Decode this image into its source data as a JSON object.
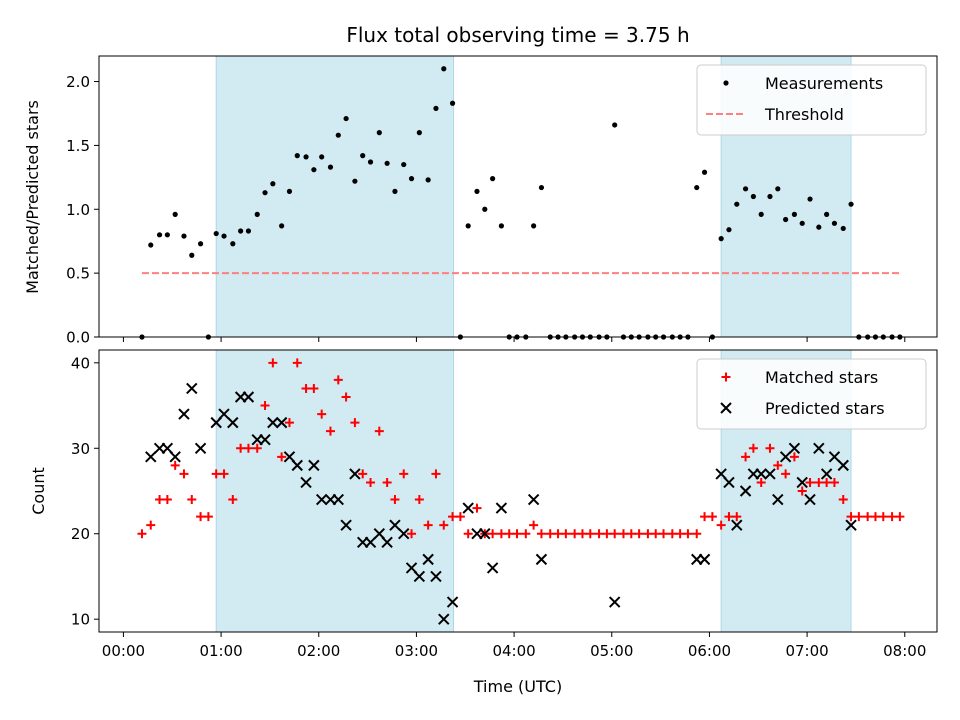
{
  "chart_data": [
    {
      "type": "scatter",
      "title": "Flux total observing time = 3.75 h",
      "xlabel": "",
      "ylabel": "Matched/Predicted stars",
      "xlim": [
        -0.25,
        8.33
      ],
      "ylim": [
        0,
        2.2
      ],
      "yticks": [
        "0.0",
        "0.5",
        "1.0",
        "1.5",
        "2.0"
      ],
      "shaded_intervals": [
        [
          0.95,
          3.38
        ],
        [
          6.12,
          7.45
        ]
      ],
      "legend_position": "top-right",
      "series": [
        {
          "name": "Measurements",
          "marker": "dot",
          "color": "#000000",
          "points": [
            [
              0.19,
              0.0
            ],
            [
              0.28,
              0.72
            ],
            [
              0.37,
              0.8
            ],
            [
              0.45,
              0.8
            ],
            [
              0.53,
              0.96
            ],
            [
              0.62,
              0.79
            ],
            [
              0.7,
              0.64
            ],
            [
              0.79,
              0.73
            ],
            [
              0.87,
              0.0
            ],
            [
              0.95,
              0.81
            ],
            [
              1.03,
              0.79
            ],
            [
              1.12,
              0.73
            ],
            [
              1.2,
              0.83
            ],
            [
              1.28,
              0.83
            ],
            [
              1.37,
              0.96
            ],
            [
              1.45,
              1.13
            ],
            [
              1.53,
              1.2
            ],
            [
              1.62,
              0.87
            ],
            [
              1.7,
              1.14
            ],
            [
              1.78,
              1.42
            ],
            [
              1.87,
              1.41
            ],
            [
              1.95,
              1.31
            ],
            [
              2.03,
              1.41
            ],
            [
              2.12,
              1.33
            ],
            [
              2.2,
              1.58
            ],
            [
              2.28,
              1.71
            ],
            [
              2.37,
              1.22
            ],
            [
              2.45,
              1.42
            ],
            [
              2.53,
              1.37
            ],
            [
              2.62,
              1.6
            ],
            [
              2.7,
              1.36
            ],
            [
              2.78,
              1.14
            ],
            [
              2.87,
              1.35
            ],
            [
              2.95,
              1.24
            ],
            [
              3.03,
              1.6
            ],
            [
              3.12,
              1.23
            ],
            [
              3.2,
              1.79
            ],
            [
              3.28,
              2.1
            ],
            [
              3.37,
              1.83
            ],
            [
              3.45,
              0.0
            ],
            [
              3.53,
              0.87
            ],
            [
              3.62,
              1.14
            ],
            [
              3.7,
              1.0
            ],
            [
              3.78,
              1.24
            ],
            [
              3.87,
              0.87
            ],
            [
              3.95,
              0.0
            ],
            [
              4.03,
              0.0
            ],
            [
              4.12,
              0.0
            ],
            [
              4.2,
              0.87
            ],
            [
              4.28,
              1.17
            ],
            [
              4.37,
              0.0
            ],
            [
              4.45,
              0.0
            ],
            [
              4.53,
              0.0
            ],
            [
              4.62,
              0.0
            ],
            [
              4.7,
              0.0
            ],
            [
              4.78,
              0.0
            ],
            [
              4.87,
              0.0
            ],
            [
              4.95,
              0.0
            ],
            [
              5.03,
              1.66
            ],
            [
              5.12,
              0.0
            ],
            [
              5.2,
              0.0
            ],
            [
              5.28,
              0.0
            ],
            [
              5.37,
              0.0
            ],
            [
              5.45,
              0.0
            ],
            [
              5.53,
              0.0
            ],
            [
              5.62,
              0.0
            ],
            [
              5.7,
              0.0
            ],
            [
              5.78,
              0.0
            ],
            [
              5.87,
              1.17
            ],
            [
              5.95,
              1.29
            ],
            [
              6.03,
              0.0
            ],
            [
              6.12,
              0.77
            ],
            [
              6.2,
              0.84
            ],
            [
              6.28,
              1.04
            ],
            [
              6.37,
              1.16
            ],
            [
              6.45,
              1.1
            ],
            [
              6.53,
              0.96
            ],
            [
              6.62,
              1.1
            ],
            [
              6.7,
              1.16
            ],
            [
              6.78,
              0.92
            ],
            [
              6.87,
              0.96
            ],
            [
              6.95,
              0.89
            ],
            [
              7.03,
              1.08
            ],
            [
              7.12,
              0.86
            ],
            [
              7.2,
              0.96
            ],
            [
              7.28,
              0.89
            ],
            [
              7.37,
              0.85
            ],
            [
              7.45,
              1.04
            ],
            [
              7.53,
              0.0
            ],
            [
              7.62,
              0.0
            ],
            [
              7.7,
              0.0
            ],
            [
              7.78,
              0.0
            ],
            [
              7.87,
              0.0
            ],
            [
              7.95,
              0.0
            ]
          ]
        },
        {
          "name": "Threshold",
          "marker": "dashed-line",
          "color": "#ff7f7f",
          "points": [
            [
              0.19,
              0.5
            ],
            [
              7.95,
              0.5
            ]
          ]
        }
      ]
    },
    {
      "type": "scatter",
      "title": "",
      "xlabel": "Time (UTC)",
      "ylabel": "Count",
      "xlim": [
        -0.25,
        8.33
      ],
      "ylim": [
        8.5,
        41.5
      ],
      "yticks": [
        "10",
        "20",
        "30",
        "40"
      ],
      "xticks": [
        "00:00",
        "01:00",
        "02:00",
        "03:00",
        "04:00",
        "05:00",
        "06:00",
        "07:00",
        "08:00"
      ],
      "shaded_intervals": [
        [
          0.95,
          3.38
        ],
        [
          6.12,
          7.45
        ]
      ],
      "legend_position": "top-right",
      "series": [
        {
          "name": "Matched stars",
          "marker": "plus",
          "color": "#ff0000",
          "points": [
            [
              0.19,
              20
            ],
            [
              0.28,
              21
            ],
            [
              0.37,
              24
            ],
            [
              0.45,
              24
            ],
            [
              0.53,
              28
            ],
            [
              0.62,
              27
            ],
            [
              0.7,
              24
            ],
            [
              0.79,
              22
            ],
            [
              0.87,
              22
            ],
            [
              0.95,
              27
            ],
            [
              1.03,
              27
            ],
            [
              1.12,
              24
            ],
            [
              1.2,
              30
            ],
            [
              1.28,
              30
            ],
            [
              1.37,
              30
            ],
            [
              1.45,
              35
            ],
            [
              1.53,
              40
            ],
            [
              1.62,
              29
            ],
            [
              1.7,
              33
            ],
            [
              1.78,
              40
            ],
            [
              1.87,
              37
            ],
            [
              1.95,
              37
            ],
            [
              2.03,
              34
            ],
            [
              2.12,
              32
            ],
            [
              2.2,
              38
            ],
            [
              2.28,
              36
            ],
            [
              2.37,
              33
            ],
            [
              2.45,
              27
            ],
            [
              2.53,
              26
            ],
            [
              2.62,
              32
            ],
            [
              2.7,
              26
            ],
            [
              2.78,
              24
            ],
            [
              2.87,
              27
            ],
            [
              2.95,
              20
            ],
            [
              3.03,
              24
            ],
            [
              3.12,
              21
            ],
            [
              3.2,
              27
            ],
            [
              3.28,
              21
            ],
            [
              3.37,
              22
            ],
            [
              3.45,
              22
            ],
            [
              3.53,
              20
            ],
            [
              3.62,
              23
            ],
            [
              3.7,
              20
            ],
            [
              3.78,
              20
            ],
            [
              3.87,
              20
            ],
            [
              3.95,
              20
            ],
            [
              4.03,
              20
            ],
            [
              4.12,
              20
            ],
            [
              4.2,
              21
            ],
            [
              4.28,
              20
            ],
            [
              4.37,
              20
            ],
            [
              4.45,
              20
            ],
            [
              4.53,
              20
            ],
            [
              4.62,
              20
            ],
            [
              4.7,
              20
            ],
            [
              4.78,
              20
            ],
            [
              4.87,
              20
            ],
            [
              4.95,
              20
            ],
            [
              5.03,
              20
            ],
            [
              5.12,
              20
            ],
            [
              5.2,
              20
            ],
            [
              5.28,
              20
            ],
            [
              5.37,
              20
            ],
            [
              5.45,
              20
            ],
            [
              5.53,
              20
            ],
            [
              5.62,
              20
            ],
            [
              5.7,
              20
            ],
            [
              5.78,
              20
            ],
            [
              5.87,
              20
            ],
            [
              5.95,
              22
            ],
            [
              6.03,
              22
            ],
            [
              6.12,
              21
            ],
            [
              6.2,
              22
            ],
            [
              6.28,
              22
            ],
            [
              6.37,
              29
            ],
            [
              6.45,
              30
            ],
            [
              6.53,
              26
            ],
            [
              6.62,
              30
            ],
            [
              6.7,
              28
            ],
            [
              6.78,
              27
            ],
            [
              6.87,
              29
            ],
            [
              6.95,
              25
            ],
            [
              7.03,
              26
            ],
            [
              7.12,
              26
            ],
            [
              7.2,
              26
            ],
            [
              7.28,
              26
            ],
            [
              7.37,
              24
            ],
            [
              7.45,
              22
            ],
            [
              7.53,
              22
            ],
            [
              7.62,
              22
            ],
            [
              7.7,
              22
            ],
            [
              7.78,
              22
            ],
            [
              7.87,
              22
            ],
            [
              7.95,
              22
            ]
          ]
        },
        {
          "name": "Predicted stars",
          "marker": "x",
          "color": "#000000",
          "points": [
            [
              0.28,
              29
            ],
            [
              0.37,
              30
            ],
            [
              0.45,
              30
            ],
            [
              0.53,
              29
            ],
            [
              0.62,
              34
            ],
            [
              0.7,
              37
            ],
            [
              0.79,
              30
            ],
            [
              0.95,
              33
            ],
            [
              1.03,
              34
            ],
            [
              1.12,
              33
            ],
            [
              1.2,
              36
            ],
            [
              1.28,
              36
            ],
            [
              1.37,
              31
            ],
            [
              1.45,
              31
            ],
            [
              1.53,
              33
            ],
            [
              1.62,
              33
            ],
            [
              1.7,
              29
            ],
            [
              1.78,
              28
            ],
            [
              1.87,
              26
            ],
            [
              1.95,
              28
            ],
            [
              2.03,
              24
            ],
            [
              2.12,
              24
            ],
            [
              2.2,
              24
            ],
            [
              2.28,
              21
            ],
            [
              2.37,
              27
            ],
            [
              2.45,
              19
            ],
            [
              2.53,
              19
            ],
            [
              2.62,
              20
            ],
            [
              2.7,
              19
            ],
            [
              2.78,
              21
            ],
            [
              2.87,
              20
            ],
            [
              2.95,
              16
            ],
            [
              3.03,
              15
            ],
            [
              3.12,
              17
            ],
            [
              3.2,
              15
            ],
            [
              3.28,
              10
            ],
            [
              3.37,
              12
            ],
            [
              3.53,
              23
            ],
            [
              3.62,
              20
            ],
            [
              3.7,
              20
            ],
            [
              3.78,
              16
            ],
            [
              3.87,
              23
            ],
            [
              4.2,
              24
            ],
            [
              4.28,
              17
            ],
            [
              5.03,
              12
            ],
            [
              5.87,
              17
            ],
            [
              5.95,
              17
            ],
            [
              6.12,
              27
            ],
            [
              6.2,
              26
            ],
            [
              6.28,
              21
            ],
            [
              6.37,
              25
            ],
            [
              6.45,
              27
            ],
            [
              6.53,
              27
            ],
            [
              6.62,
              27
            ],
            [
              6.7,
              24
            ],
            [
              6.78,
              29
            ],
            [
              6.87,
              30
            ],
            [
              6.95,
              26
            ],
            [
              7.03,
              24
            ],
            [
              7.12,
              30
            ],
            [
              7.2,
              27
            ],
            [
              7.28,
              29
            ],
            [
              7.37,
              28
            ],
            [
              7.45,
              21
            ]
          ]
        }
      ]
    }
  ]
}
